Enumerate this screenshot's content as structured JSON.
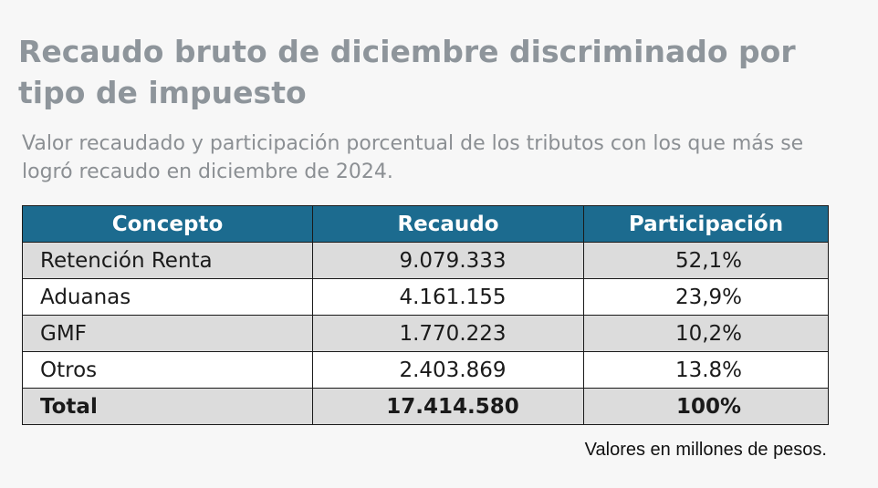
{
  "title": "Recaudo bruto de diciembre discriminado por tipo de impuesto",
  "subtitle": "Valor recaudado y participación porcentual de los tributos con los que más se logró recaudo en diciembre de 2024.",
  "table": {
    "headers": {
      "concepto": "Concepto",
      "recaudo": "Recaudo",
      "participacion": "Participación"
    },
    "rows": [
      {
        "concepto": "Retención Renta",
        "recaudo": "9.079.333",
        "participacion": "52,1%"
      },
      {
        "concepto": "Aduanas",
        "recaudo": "4.161.155",
        "participacion": "23,9%"
      },
      {
        "concepto": "GMF",
        "recaudo": "1.770.223",
        "participacion": "10,2%"
      },
      {
        "concepto": "Otros",
        "recaudo": "2.403.869",
        "participacion": "13.8%"
      }
    ],
    "total": {
      "concepto": "Total",
      "recaudo": "17.414.580",
      "participacion": "100%"
    }
  },
  "footnote": "Valores en millones de pesos.",
  "colors": {
    "header_bg": "#1c6b8f",
    "title": "#8e959b",
    "row_shade": "#dcdcdc"
  }
}
